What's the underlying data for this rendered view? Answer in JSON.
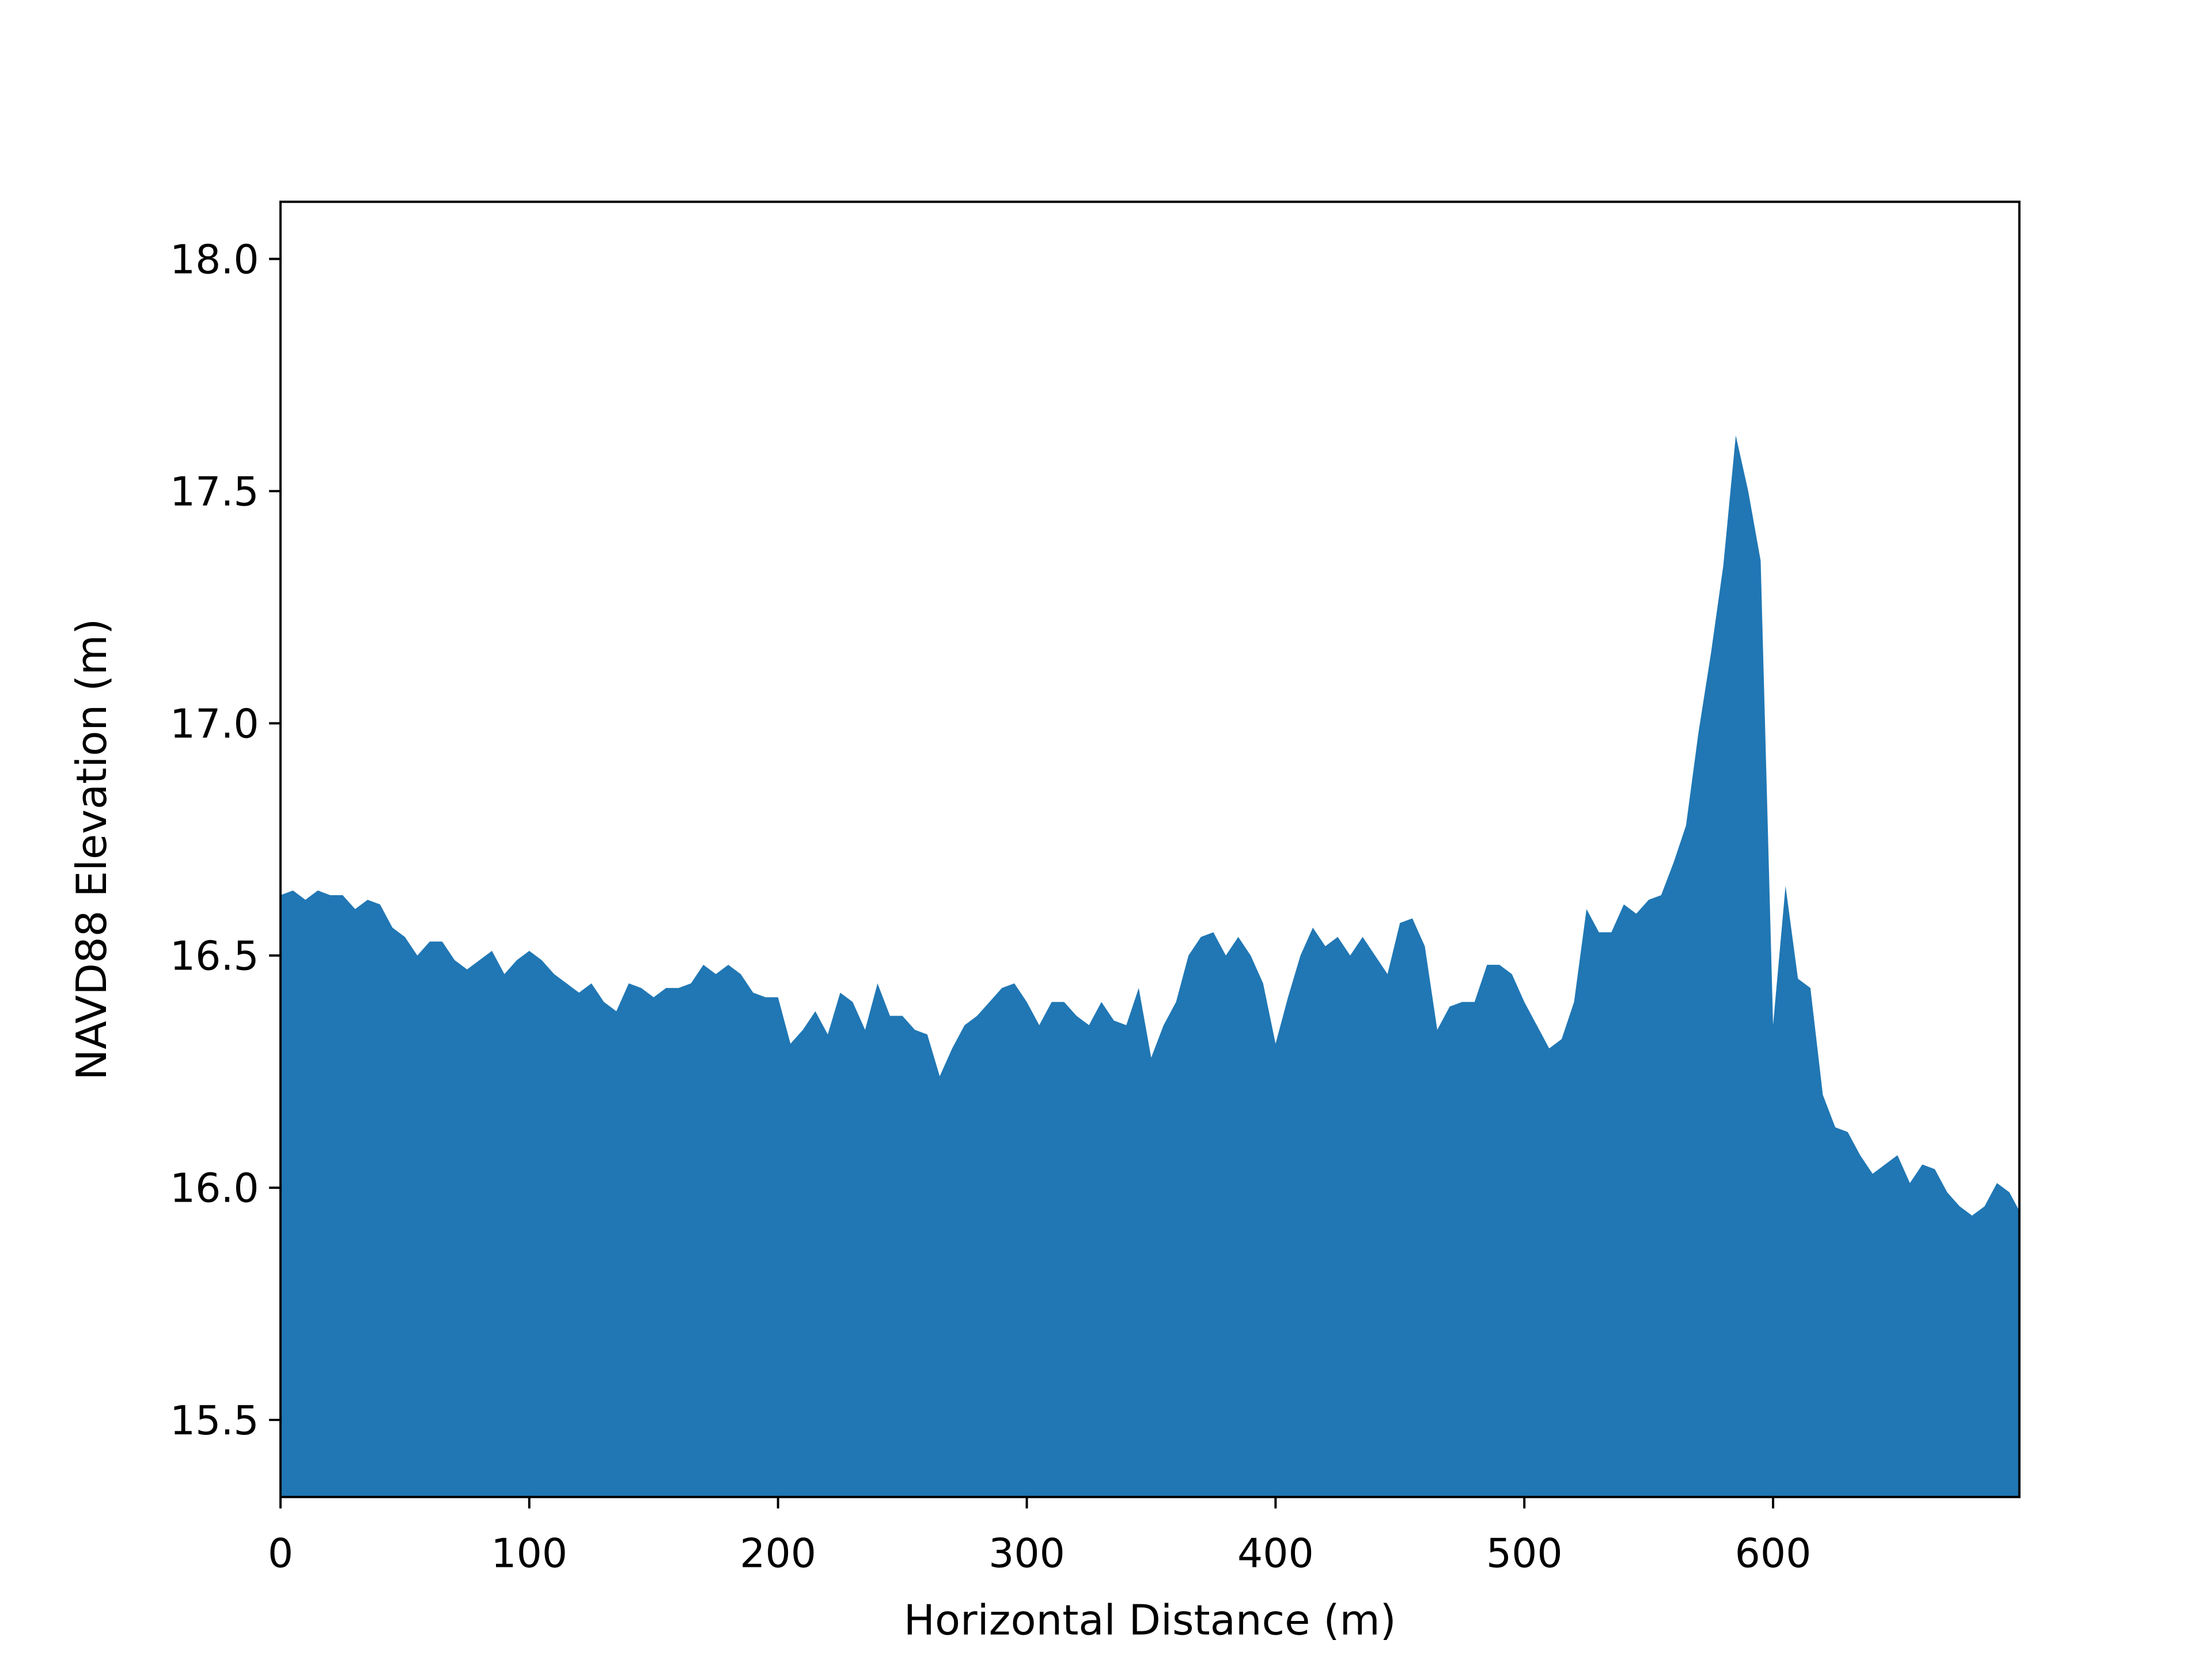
{
  "chart_data": {
    "type": "area",
    "xlabel": "Horizontal Distance (m)",
    "ylabel": "NAVD88 Elevation (m)",
    "color": "#2077b4",
    "x": [
      0,
      5,
      10,
      15,
      20,
      25,
      30,
      35,
      40,
      45,
      50,
      55,
      60,
      65,
      70,
      75,
      80,
      85,
      90,
      95,
      100,
      105,
      110,
      115,
      120,
      125,
      130,
      135,
      140,
      145,
      150,
      155,
      160,
      165,
      170,
      175,
      180,
      185,
      190,
      195,
      200,
      205,
      210,
      215,
      220,
      225,
      230,
      235,
      240,
      245,
      250,
      255,
      260,
      265,
      270,
      275,
      280,
      285,
      290,
      295,
      300,
      305,
      310,
      315,
      320,
      325,
      330,
      335,
      340,
      345,
      350,
      355,
      360,
      365,
      370,
      375,
      380,
      385,
      390,
      395,
      400,
      405,
      410,
      415,
      420,
      425,
      430,
      435,
      440,
      445,
      450,
      455,
      460,
      465,
      470,
      475,
      480,
      485,
      490,
      495,
      500,
      505,
      510,
      515,
      520,
      525,
      530,
      535,
      540,
      545,
      550,
      555,
      560,
      565,
      570,
      575,
      580,
      585,
      590,
      595,
      600,
      605,
      610,
      615,
      620,
      625,
      630,
      635,
      640,
      645,
      650,
      655,
      660,
      665,
      670,
      675,
      680,
      685,
      690,
      695,
      699
    ],
    "values": [
      16.63,
      16.64,
      16.62,
      16.64,
      16.63,
      16.63,
      16.6,
      16.62,
      16.61,
      16.56,
      16.54,
      16.5,
      16.53,
      16.53,
      16.49,
      16.47,
      16.49,
      16.51,
      16.46,
      16.49,
      16.51,
      16.49,
      16.46,
      16.44,
      16.42,
      16.44,
      16.4,
      16.38,
      16.44,
      16.43,
      16.41,
      16.43,
      16.43,
      16.44,
      16.48,
      16.46,
      16.48,
      16.46,
      16.42,
      16.41,
      16.41,
      16.31,
      16.34,
      16.38,
      16.33,
      16.42,
      16.4,
      16.34,
      16.44,
      16.37,
      16.37,
      16.34,
      16.33,
      16.24,
      16.3,
      16.35,
      16.37,
      16.4,
      16.43,
      16.44,
      16.4,
      16.35,
      16.4,
      16.4,
      16.37,
      16.35,
      16.4,
      16.36,
      16.35,
      16.43,
      16.28,
      16.35,
      16.4,
      16.5,
      16.54,
      16.55,
      16.5,
      16.54,
      16.5,
      16.44,
      16.31,
      16.41,
      16.5,
      16.56,
      16.52,
      16.54,
      16.5,
      16.54,
      16.5,
      16.46,
      16.57,
      16.58,
      16.52,
      16.34,
      16.39,
      16.4,
      16.4,
      16.48,
      16.48,
      16.46,
      16.4,
      16.35,
      16.3,
      16.32,
      16.4,
      16.6,
      16.55,
      16.55,
      16.61,
      16.59,
      16.62,
      16.63,
      16.7,
      16.78,
      16.98,
      17.15,
      17.34,
      17.62,
      17.5,
      17.35,
      16.35,
      16.65,
      16.45,
      16.43,
      16.2,
      16.13,
      16.12,
      16.07,
      16.03,
      16.05,
      16.07,
      16.01,
      16.05,
      16.04,
      15.99,
      15.96,
      15.94,
      15.96,
      16.01,
      15.99,
      15.95
    ],
    "xlim": [
      0,
      699
    ],
    "ylim": [
      15.334,
      18.123
    ],
    "xticks": [
      0,
      100,
      200,
      300,
      400,
      500,
      600
    ],
    "yticks": [
      15.5,
      {
        "value": 16,
        "label": "16.0"
      },
      16.5,
      {
        "value": 17,
        "label": "17.0"
      },
      17.5,
      {
        "value": 18,
        "label": "18.0"
      }
    ]
  }
}
